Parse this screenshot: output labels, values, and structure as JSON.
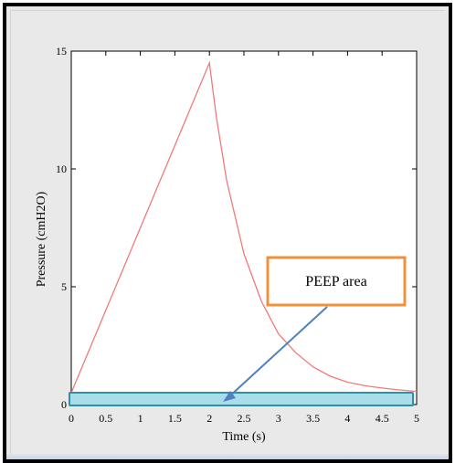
{
  "chart_data": {
    "type": "line",
    "xlabel": "Time (s)",
    "ylabel": "Pressure (cmH2O)",
    "xlim": [
      0,
      5
    ],
    "ylim": [
      0,
      15
    ],
    "xticks": [
      "0",
      "0.5",
      "1",
      "1.5",
      "2",
      "2.5",
      "3",
      "3.5",
      "4",
      "4.5",
      "5"
    ],
    "yticks": [
      "0",
      "5",
      "10",
      "15"
    ],
    "grid": false,
    "series": [
      {
        "color": "#f07a7a",
        "x": [
          0,
          0.25,
          0.5,
          0.75,
          1,
          1.25,
          1.5,
          1.75,
          2,
          2.1,
          2.25,
          2.5,
          2.75,
          3,
          3.25,
          3.5,
          3.75,
          4,
          4.25,
          4.5,
          4.75,
          5
        ],
        "y": [
          0.5,
          2.25,
          4.0,
          5.75,
          7.5,
          9.25,
          11.0,
          12.75,
          14.5,
          12.2,
          9.5,
          6.4,
          4.4,
          3.0,
          2.2,
          1.6,
          1.2,
          0.95,
          0.8,
          0.7,
          0.62,
          0.56
        ]
      }
    ],
    "annotations": [
      {
        "text": "PEEP area",
        "box_color": "#f0903c",
        "arrow_color": "#4f81bd",
        "band_fill": "#a9dde9",
        "band_border": "#2d8fa8"
      }
    ]
  }
}
